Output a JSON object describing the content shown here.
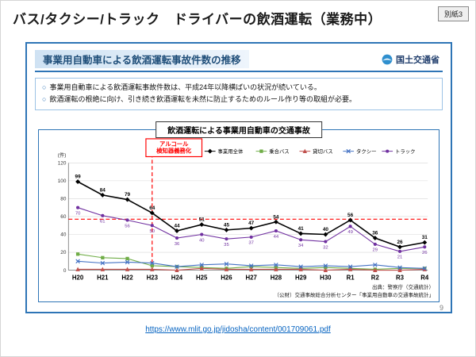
{
  "slide": {
    "title": "バス/タクシー/トラック　ドライバーの飲酒運転（業務中）",
    "badge": "別紙3",
    "page_number": "9",
    "link": "https://www.mlit.go.jp/jidosha/content/001709061.pdf"
  },
  "panel": {
    "header": "事業用自動車による飲酒運転事故件数の推移",
    "logo_text": "国土交通省",
    "bullet_marker": "○",
    "bullets": [
      "事業用自動車による飲酒運転事故件数は、平成24年以降横ばいの状況が続いている。",
      "飲酒運転の根絶に向け、引き続き飲酒運転を未然に防止するためのルール作り等の取組が必要。"
    ]
  },
  "chart_data": {
    "type": "line",
    "title": "飲酒運転による事業用自動車の交通事故",
    "unit_label": "(件)",
    "ylim": [
      0,
      120
    ],
    "yticks": [
      0,
      20,
      40,
      60,
      80,
      100,
      120
    ],
    "legend_position": "top",
    "grid": true,
    "categories": [
      "H20",
      "H21",
      "H22",
      "H23",
      "H24",
      "H25",
      "H26",
      "H27",
      "H28",
      "H29",
      "H30",
      "R1",
      "R2",
      "R3",
      "R4"
    ],
    "series": [
      {
        "name": "事業用全体",
        "color": "#000000",
        "marker": "diamond",
        "label_pos": "above",
        "values": [
          99,
          84,
          79,
          64,
          44,
          51,
          45,
          47,
          54,
          41,
          40,
          56,
          36,
          26,
          31
        ]
      },
      {
        "name": "乗合バス",
        "color": "#70ad47",
        "marker": "square",
        "label_pos": "none",
        "values": [
          18,
          14,
          13,
          5,
          4,
          3,
          2,
          4,
          3,
          2,
          3,
          2,
          1,
          2,
          2
        ]
      },
      {
        "name": "貸切バス",
        "color": "#c0504d",
        "marker": "triangle",
        "label_pos": "none",
        "values": [
          1,
          1,
          1,
          1,
          0,
          2,
          1,
          1,
          1,
          1,
          0,
          1,
          0,
          0,
          1
        ]
      },
      {
        "name": "タクシー",
        "color": "#4472c4",
        "marker": "cross",
        "label_pos": "none",
        "values": [
          10,
          8,
          9,
          8,
          4,
          6,
          7,
          5,
          6,
          4,
          5,
          4,
          6,
          3,
          2
        ]
      },
      {
        "name": "トラック",
        "color": "#7030a0",
        "marker": "circle",
        "label_pos": "below",
        "values": [
          70,
          61,
          56,
          50,
          36,
          40,
          35,
          37,
          44,
          34,
          32,
          49,
          29,
          21,
          26
        ]
      }
    ],
    "annotation": {
      "label_line1": "アルコール",
      "label_line2": "検知器義務化",
      "vline_category": "H23",
      "hline_value": 57,
      "color": "#ff0000"
    },
    "source_line1": "出典：警察庁（交通統計）",
    "source_line2": "（公財）交通事故総合分析センター「事業用自動車の交通事故統計」"
  }
}
